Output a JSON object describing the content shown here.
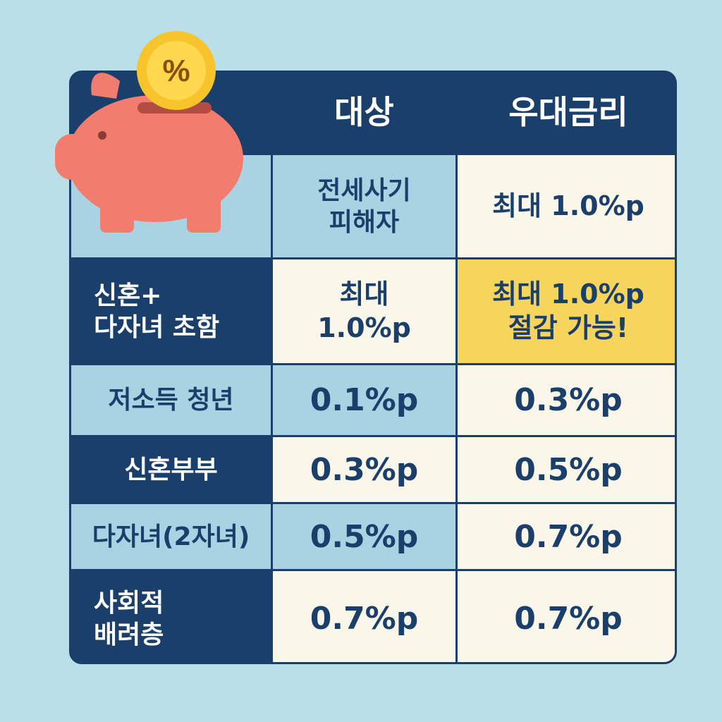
{
  "icons": {
    "piggy": "piggy-bank-icon",
    "coin": "percent-coin-icon"
  },
  "colors": {
    "navy": "#1b3f6b",
    "light_blue": "#a9d2e2",
    "cream": "#fbf6ea",
    "yellow": "#f7d45c",
    "pig": "#f27d6e",
    "coin": "#f7c52b"
  },
  "coin_symbol": "%",
  "table": {
    "headers": {
      "target": "대상",
      "rate": "우대금리"
    },
    "rows": [
      {
        "label": "",
        "target": "전세사기\n피해자",
        "rate": "최대 1.0%p"
      },
      {
        "label": "신혼+\n다자녀 초함",
        "target": "최대\n1.0%p",
        "rate": "최대 1.0%p\n절감 가능!"
      },
      {
        "label": "저소득 청년",
        "target": "0.1%p",
        "rate": "0.3%p"
      },
      {
        "label": "신혼부부",
        "target": "0.3%p",
        "rate": "0.5%p"
      },
      {
        "label": "다자녀(2자녀)",
        "target": "0.5%p",
        "rate": "0.7%p"
      },
      {
        "label": "사회적\n배려층",
        "target": "0.7%p",
        "rate": "0.7%p"
      }
    ]
  }
}
